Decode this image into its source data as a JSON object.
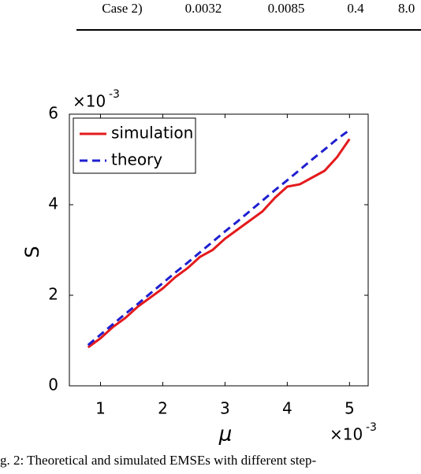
{
  "table": {
    "row": [
      "Case 2)",
      "0.0032",
      "0.0085",
      "0.4",
      "8.0"
    ]
  },
  "chart_data": {
    "type": "line",
    "x": [
      0.8,
      1.0,
      1.2,
      1.4,
      1.6,
      1.8,
      2.0,
      2.2,
      2.4,
      2.6,
      2.8,
      3.0,
      3.2,
      3.4,
      3.6,
      3.8,
      4.0,
      4.2,
      4.4,
      4.6,
      4.8,
      5.0
    ],
    "series": [
      {
        "name": "simulation",
        "color": "#e41a1c",
        "dash": false,
        "values": [
          0.85,
          1.05,
          1.3,
          1.5,
          1.75,
          1.95,
          2.15,
          2.4,
          2.6,
          2.85,
          3.0,
          3.25,
          3.45,
          3.65,
          3.85,
          4.15,
          4.4,
          4.45,
          4.6,
          4.75,
          5.05,
          5.45
        ]
      },
      {
        "name": "theory",
        "color": "#1f1fd0",
        "dash": true,
        "values": [
          0.9,
          1.13,
          1.36,
          1.59,
          1.81,
          2.04,
          2.27,
          2.5,
          2.72,
          2.95,
          3.18,
          3.41,
          3.63,
          3.86,
          4.09,
          4.32,
          4.54,
          4.77,
          5.0,
          5.22,
          5.45,
          5.65
        ]
      }
    ],
    "xlim": [
      0.5,
      5.3
    ],
    "ylim": [
      0,
      6
    ],
    "xticks": [
      1,
      2,
      3,
      4,
      5
    ],
    "yticks": [
      0,
      2,
      4,
      6
    ],
    "xlabel": "μ",
    "ylabel": "S",
    "x_multiplier": "×10",
    "x_exponent": "-3",
    "y_multiplier": "×10",
    "y_exponent": "-3",
    "legend": "upper left"
  },
  "caption": "g. 2: Theoretical and simulated EMSEs with different step-"
}
